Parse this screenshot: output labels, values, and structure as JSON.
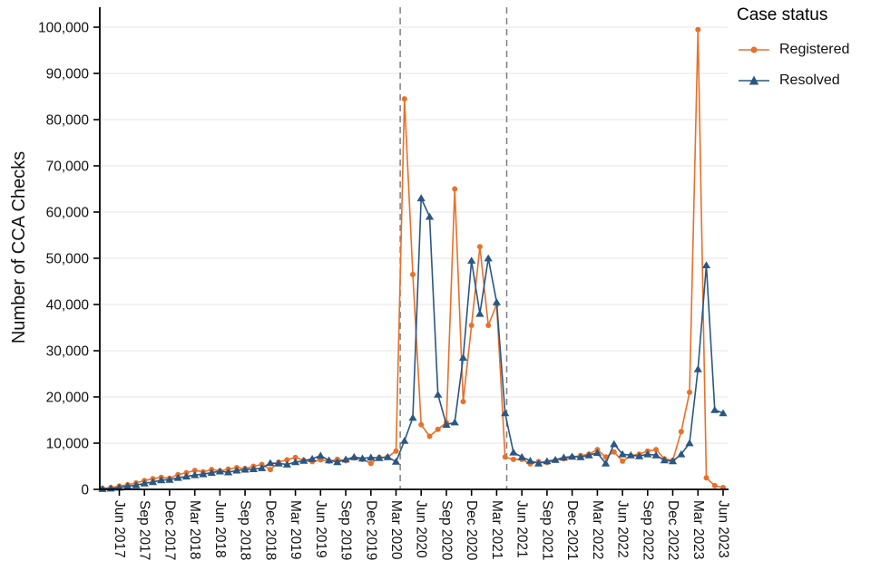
{
  "legend": {
    "title": "Case status",
    "items": [
      {
        "label": "Registered",
        "color": "#E8702A",
        "marker": "circle"
      },
      {
        "label": "Resolved",
        "color": "#2A5783",
        "marker": "triangle"
      }
    ]
  },
  "chart_data": {
    "type": "line",
    "title": "",
    "xlabel": "",
    "ylabel": "Number of CCA Checks",
    "ylim": [
      0,
      100000
    ],
    "grid": "horizontal",
    "legend_position": "right",
    "colors": {
      "grid": "#e6e6e6",
      "vline": "#7f7f7f",
      "axis": "#000000"
    },
    "x": [
      "Apr 2017",
      "May 2017",
      "Jun 2017",
      "Jul 2017",
      "Aug 2017",
      "Sep 2017",
      "Oct 2017",
      "Nov 2017",
      "Dec 2017",
      "Jan 2018",
      "Feb 2018",
      "Mar 2018",
      "Apr 2018",
      "May 2018",
      "Jun 2018",
      "Jul 2018",
      "Aug 2018",
      "Sep 2018",
      "Oct 2018",
      "Nov 2018",
      "Dec 2018",
      "Jan 2019",
      "Feb 2019",
      "Mar 2019",
      "Apr 2019",
      "May 2019",
      "Jun 2019",
      "Jul 2019",
      "Aug 2019",
      "Sep 2019",
      "Oct 2019",
      "Nov 2019",
      "Dec 2019",
      "Jan 2020",
      "Feb 2020",
      "Mar 2020",
      "Apr 2020",
      "May 2020",
      "Jun 2020",
      "Jul 2020",
      "Aug 2020",
      "Sep 2020",
      "Oct 2020",
      "Nov 2020",
      "Dec 2020",
      "Jan 2021",
      "Feb 2021",
      "Mar 2021",
      "Apr 2021",
      "May 2021",
      "Jun 2021",
      "Jul 2021",
      "Aug 2021",
      "Sep 2021",
      "Oct 2021",
      "Nov 2021",
      "Dec 2021",
      "Jan 2022",
      "Feb 2022",
      "Mar 2022",
      "Apr 2022",
      "May 2022",
      "Jun 2022",
      "Jul 2022",
      "Aug 2022",
      "Sep 2022",
      "Oct 2022",
      "Nov 2022",
      "Dec 2022",
      "Jan 2023",
      "Feb 2023",
      "Mar 2023",
      "Apr 2023",
      "May 2023",
      "Jun 2023"
    ],
    "series": [
      {
        "name": "Registered",
        "color": "#E8702A",
        "marker": "circle",
        "values": [
          200,
          400,
          700,
          1000,
          1400,
          1900,
          2300,
          2600,
          2400,
          3200,
          3600,
          4100,
          3800,
          4300,
          4000,
          4400,
          4700,
          4500,
          5000,
          5400,
          4300,
          5900,
          6400,
          6900,
          6300,
          6000,
          6400,
          6100,
          6500,
          6200,
          6800,
          6500,
          5600,
          6900,
          7000,
          8300,
          84500,
          46500,
          14000,
          11500,
          13000,
          14500,
          65000,
          19000,
          35500,
          52500,
          35500,
          40000,
          7000,
          6500,
          6500,
          5500,
          6000,
          5800,
          6300,
          6600,
          7000,
          7300,
          7600,
          8600,
          7000,
          8100,
          6100,
          7300,
          7600,
          8300,
          8600,
          6600,
          6300,
          12500,
          21000,
          99500,
          2500,
          800,
          400
        ]
      },
      {
        "name": "Resolved",
        "color": "#2A5783",
        "marker": "triangle",
        "values": [
          100,
          200,
          400,
          700,
          900,
          1300,
          1600,
          2000,
          2100,
          2500,
          2800,
          3100,
          3300,
          3600,
          3900,
          3700,
          4100,
          4300,
          4400,
          4600,
          5700,
          5600,
          5400,
          5900,
          6200,
          6600,
          7300,
          6300,
          5900,
          6500,
          7000,
          6700,
          6900,
          6800,
          7000,
          6000,
          10500,
          15500,
          63000,
          59000,
          20500,
          14000,
          14500,
          28500,
          49500,
          38000,
          50000,
          40500,
          16500,
          8000,
          7000,
          6200,
          5600,
          6100,
          6400,
          6900,
          7100,
          7000,
          7400,
          7900,
          5600,
          9800,
          7600,
          7400,
          7200,
          7600,
          7400,
          6300,
          6100,
          7600,
          10000,
          26000,
          48500,
          17200,
          16500
        ]
      }
    ],
    "x_tick_labels": [
      "Jun 2017",
      "Sep 2017",
      "Dec 2017",
      "Mar 2018",
      "Jun 2018",
      "Sep 2018",
      "Dec 2018",
      "Mar 2019",
      "Jun 2019",
      "Sep 2019",
      "Dec 2019",
      "Mar 2020",
      "Jun 2020",
      "Sep 2020",
      "Dec 2020",
      "Mar 2021",
      "Jun 2021",
      "Sep 2021",
      "Dec 2021",
      "Mar 2022",
      "Jun 2022",
      "Sep 2022",
      "Dec 2022",
      "Mar 2023",
      "Jun 2023"
    ],
    "y_ticks": [
      0,
      10000,
      20000,
      30000,
      40000,
      50000,
      60000,
      70000,
      80000,
      90000,
      100000
    ],
    "y_tick_labels": [
      "0",
      "10,000",
      "20,000",
      "30,000",
      "40,000",
      "50,000",
      "60,000",
      "70,000",
      "80,000",
      "90,000",
      "100,000"
    ],
    "vlines": [
      {
        "approx_date": "Mar 2020",
        "x_index": 35.5,
        "style": "dashed"
      },
      {
        "approx_date": "Apr 2021",
        "x_index": 48.2,
        "style": "dashed"
      }
    ]
  }
}
